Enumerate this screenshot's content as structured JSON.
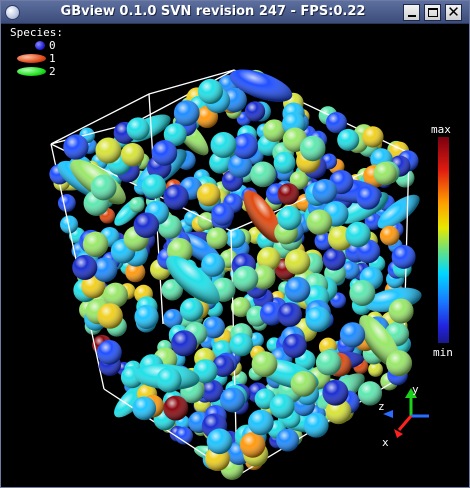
{
  "window": {
    "title": "GBview 0.1.0 SVN revision 247 - FPS:0.22"
  },
  "legend": {
    "heading": "Species:",
    "items": [
      {
        "label": "0",
        "color": "#2424d8"
      },
      {
        "label": "1",
        "color": "#e04a1a"
      },
      {
        "label": "2",
        "color": "#20e020"
      }
    ]
  },
  "colorbar": {
    "max_label": "max",
    "min_label": "min"
  },
  "axes": {
    "x": "x",
    "y": "y",
    "z": "z"
  }
}
